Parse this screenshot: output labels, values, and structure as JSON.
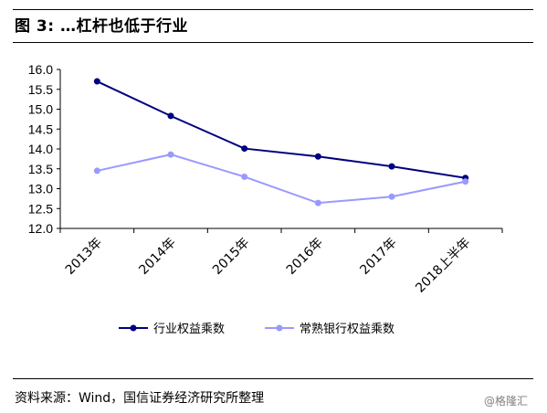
{
  "header": {
    "title": "图 3: …杠杆也低于行业"
  },
  "chart_data": {
    "type": "line",
    "title": "",
    "xlabel": "",
    "ylabel": "",
    "categories": [
      "2013年",
      "2014年",
      "2015年",
      "2016年",
      "2017年",
      "2018上半年"
    ],
    "ylim": [
      12.0,
      16.0
    ],
    "yticks": [
      "16.0",
      "15.5",
      "15.0",
      "14.5",
      "14.0",
      "13.5",
      "13.0",
      "12.5",
      "12.0"
    ],
    "grid": false,
    "legend_position": "bottom",
    "series": [
      {
        "name": "行业权益乘数",
        "color": "#000080",
        "values": [
          15.7,
          14.83,
          14.01,
          13.81,
          13.56,
          13.27
        ]
      },
      {
        "name": "常熟银行权益乘数",
        "color": "#9999ff",
        "values": [
          13.45,
          13.86,
          13.3,
          12.64,
          12.8,
          13.18
        ]
      }
    ]
  },
  "footer": {
    "source": "资料来源：Wind，国信证券经济研究所整理",
    "watermark": "@格隆汇"
  }
}
